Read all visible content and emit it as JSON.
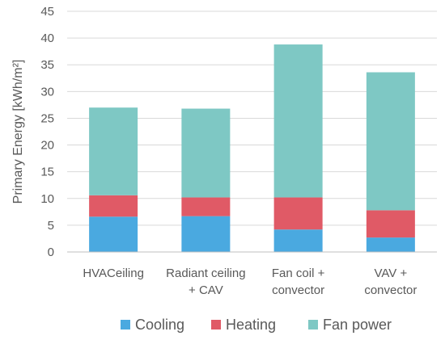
{
  "chart_data": {
    "type": "bar",
    "stacked": true,
    "categories": [
      [
        "HVACeiling"
      ],
      [
        "Radiant ceiling",
        "+ CAV"
      ],
      [
        "Fan coil +",
        "convector"
      ],
      [
        "VAV +",
        "convector"
      ]
    ],
    "series": [
      {
        "name": "Cooling",
        "color": "#4aa9e0",
        "values": [
          6.6,
          6.7,
          4.2,
          2.7
        ]
      },
      {
        "name": "Heating",
        "color": "#e05a66",
        "values": [
          4.0,
          3.5,
          6.0,
          5.1
        ]
      },
      {
        "name": "Fan power",
        "color": "#7ec8c4",
        "values": [
          16.4,
          16.6,
          28.6,
          25.8
        ]
      }
    ],
    "ylabel": "Primary Energy [kWh/m²]",
    "ylim": [
      0,
      45
    ],
    "yticks": [
      0,
      5,
      10,
      15,
      20,
      25,
      30,
      35,
      40,
      45
    ],
    "grid": true,
    "legend": "bottom"
  }
}
